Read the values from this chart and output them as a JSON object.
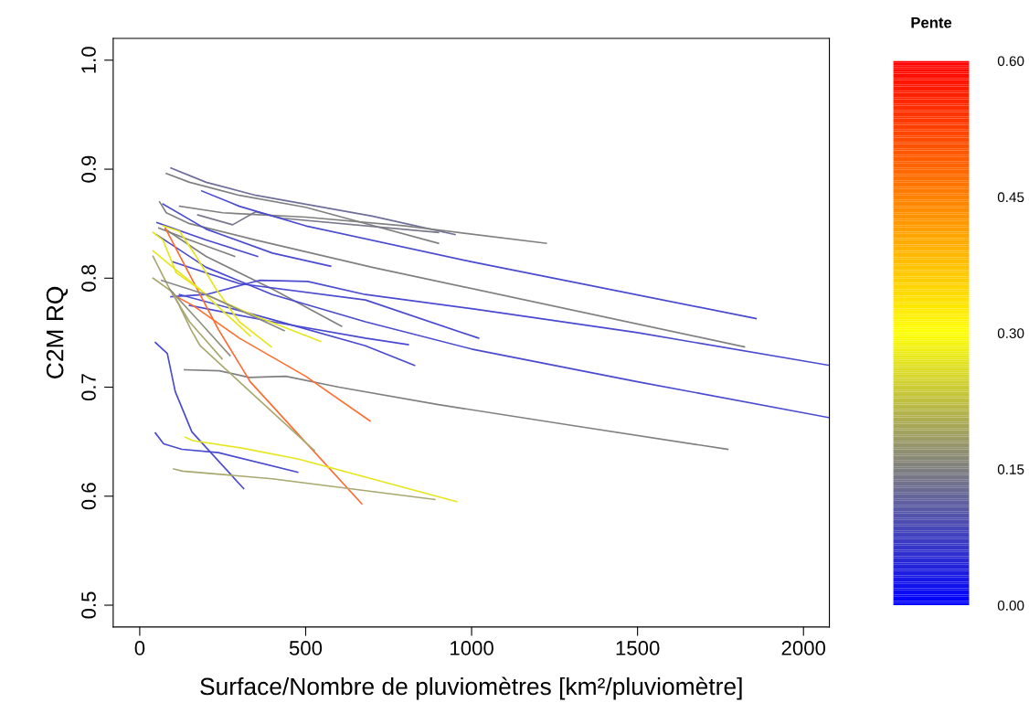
{
  "chart_data": {
    "type": "line",
    "xlabel": "Surface/Nombre de pluviomètres [km²/pluviomètre]",
    "ylabel": "C2M RQ",
    "clabel": "Pente",
    "xlim": [
      -80,
      2078
    ],
    "ylim": [
      0.48,
      1.02
    ],
    "xticks": [
      0,
      500,
      1000,
      1500,
      2000
    ],
    "yticks": [
      0.5,
      0.6,
      0.7,
      0.8,
      0.9,
      {
        "value": 1,
        "label": "1.0"
      }
    ],
    "clim": [
      0,
      0.6
    ],
    "cticks": [
      {
        "value": 0,
        "label": "0.00"
      },
      {
        "value": 0.15,
        "label": "0.15"
      },
      {
        "value": 0.3,
        "label": "0.30"
      },
      {
        "value": 0.45,
        "label": "0.45"
      },
      {
        "value": 0.6,
        "label": "0.60"
      }
    ],
    "grid": false,
    "legend": false,
    "series": [
      {
        "color": "#6e6e9a",
        "x": [
          94,
          200,
          350,
          700,
          950
        ],
        "values": [
          0.901,
          0.888,
          0.876,
          0.857,
          0.84
        ]
      },
      {
        "color": "#808080",
        "x": [
          80,
          150,
          300,
          500,
          900
        ],
        "values": [
          0.896,
          0.888,
          0.876,
          0.865,
          0.832
        ]
      },
      {
        "color": "#808080",
        "x": [
          120,
          250,
          500,
          800,
          1225
        ],
        "values": [
          0.866,
          0.86,
          0.856,
          0.848,
          0.832
        ]
      },
      {
        "color": "#78788a",
        "x": [
          175,
          280,
          350,
          430,
          900
        ],
        "values": [
          0.858,
          0.849,
          0.861,
          0.855,
          0.842
        ]
      },
      {
        "color": "#4a4ad0",
        "x": [
          187,
          300,
          500,
          1000,
          1857
        ],
        "values": [
          0.88,
          0.866,
          0.848,
          0.815,
          0.763
        ]
      },
      {
        "color": "#808080",
        "x": [
          60,
          80,
          150,
          350,
          700,
          1822
        ],
        "values": [
          0.87,
          0.86,
          0.85,
          0.835,
          0.81,
          0.737
        ]
      },
      {
        "color": "#4a4ad0",
        "x": [
          70,
          200,
          400,
          575
        ],
        "values": [
          0.868,
          0.845,
          0.823,
          0.811
        ]
      },
      {
        "color": "#4a4ad0",
        "x": [
          52,
          200,
          355
        ],
        "values": [
          0.851,
          0.835,
          0.82
        ]
      },
      {
        "color": "#808080",
        "x": [
          58,
          150,
          286
        ],
        "values": [
          0.846,
          0.835,
          0.82
        ]
      },
      {
        "color": "#808080",
        "x": [
          77,
          200,
          400,
          608
        ],
        "values": [
          0.845,
          0.82,
          0.79,
          0.756
        ]
      },
      {
        "color": "#4a4ad0",
        "x": [
          50,
          200,
          400,
          680,
          1000,
          1500,
          2078
        ],
        "values": [
          0.84,
          0.81,
          0.785,
          0.76,
          0.735,
          0.705,
          0.672
        ]
      },
      {
        "color": "#4a4ad0",
        "x": [
          94,
          200,
          360,
          506,
          680,
          1000,
          1500,
          2078
        ],
        "values": [
          0.783,
          0.785,
          0.798,
          0.797,
          0.785,
          0.772,
          0.75,
          0.72
        ]
      },
      {
        "color": "#4a4ad0",
        "x": [
          100,
          300,
          680,
          1021
        ],
        "values": [
          0.815,
          0.795,
          0.78,
          0.745
        ]
      },
      {
        "color": "#4a4ad0",
        "x": [
          150,
          400,
          680,
          809
        ],
        "values": [
          0.775,
          0.76,
          0.745,
          0.739
        ]
      },
      {
        "color": "#4a4ad0",
        "x": [
          120,
          400,
          680,
          828
        ],
        "values": [
          0.785,
          0.762,
          0.738,
          0.72
        ]
      },
      {
        "color": "#808080",
        "x": [
          135,
          240,
          330,
          440,
          600,
          900,
          1300,
          1772
        ],
        "values": [
          0.716,
          0.715,
          0.709,
          0.71,
          0.7,
          0.684,
          0.665,
          0.643
        ]
      },
      {
        "color": "#ff6a30",
        "x": [
          77,
          130,
          237,
          333,
          669
        ],
        "values": [
          0.846,
          0.815,
          0.753,
          0.705,
          0.593
        ]
      },
      {
        "color": "#ff7030",
        "x": [
          99,
          160,
          300,
          500,
          694
        ],
        "values": [
          0.785,
          0.775,
          0.745,
          0.71,
          0.669
        ]
      },
      {
        "color": "#4a4ad0",
        "x": [
          47,
          83,
          107,
          157,
          313
        ],
        "values": [
          0.741,
          0.731,
          0.696,
          0.659,
          0.607
        ]
      },
      {
        "color": "#4a4ad0",
        "x": [
          47,
          72,
          127,
          237,
          476
        ],
        "values": [
          0.658,
          0.648,
          0.643,
          0.64,
          0.622
        ]
      },
      {
        "color": "#e6e620",
        "x": [
          138,
          160,
          311,
          479,
          955
        ],
        "values": [
          0.654,
          0.651,
          0.644,
          0.634,
          0.595
        ]
      },
      {
        "color": "#a8a870",
        "x": [
          102,
          129,
          399,
          889
        ],
        "values": [
          0.625,
          0.623,
          0.616,
          0.597
        ]
      },
      {
        "color": "#a8a870",
        "x": [
          40,
          100,
          154,
          182,
          526
        ],
        "values": [
          0.8,
          0.787,
          0.753,
          0.738,
          0.642
        ]
      },
      {
        "color": "#a8a870",
        "x": [
          40,
          90,
          150,
          248
        ],
        "values": [
          0.82,
          0.79,
          0.76,
          0.726
        ]
      },
      {
        "color": "#909080",
        "x": [
          90,
          180,
          272
        ],
        "values": [
          0.79,
          0.76,
          0.729
        ]
      },
      {
        "color": "#e6e620",
        "x": [
          40,
          70,
          110,
          180,
          250,
          333
        ],
        "values": [
          0.842,
          0.835,
          0.805,
          0.79,
          0.77,
          0.747
        ]
      },
      {
        "color": "#e6e620",
        "x": [
          70,
          120,
          170,
          230,
          300,
          396
        ],
        "values": [
          0.848,
          0.843,
          0.82,
          0.79,
          0.76,
          0.737
        ]
      },
      {
        "color": "#e6e620",
        "x": [
          40,
          100,
          200,
          350,
          545
        ],
        "values": [
          0.825,
          0.81,
          0.785,
          0.765,
          0.742
        ]
      },
      {
        "color": "#888888",
        "x": [
          66,
          200,
          435
        ],
        "values": [
          0.798,
          0.785,
          0.752
        ]
      }
    ]
  }
}
